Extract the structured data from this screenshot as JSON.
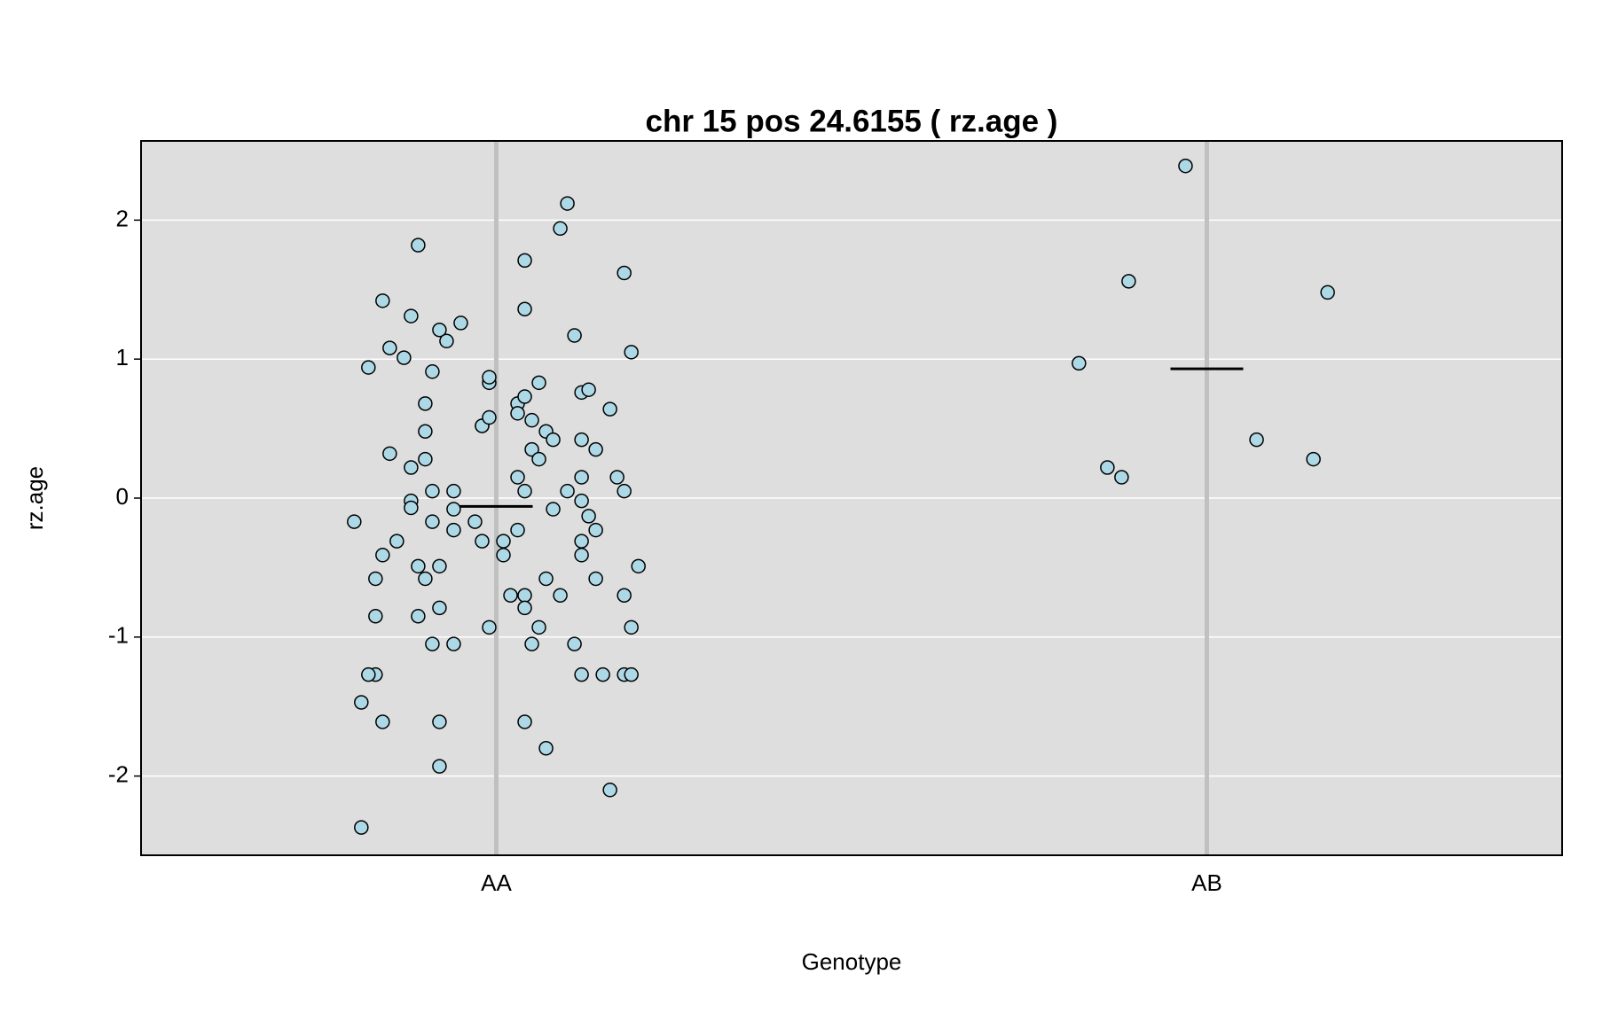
{
  "chart_data": {
    "type": "scatter",
    "title": "chr 15 pos 24.6155 ( rz.age )",
    "xlabel": "Genotype",
    "ylabel": "rz.age",
    "xlim": [
      0.5,
      2.5
    ],
    "xticks": [
      {
        "value": 1,
        "label": "AA"
      },
      {
        "value": 2,
        "label": "AB"
      }
    ],
    "ylim": [
      -2.57,
      2.57
    ],
    "yticks": [
      -2,
      -1,
      0,
      1,
      2
    ],
    "grid": true,
    "background": "#dedede",
    "grid_color": "#ffffff",
    "series": [
      {
        "color": "#add8e6",
        "x": [
          0.8,
          0.82,
          0.84,
          0.85,
          0.88,
          0.87,
          0.89,
          0.84,
          0.83,
          0.83,
          0.83,
          0.82,
          0.81,
          0.84,
          0.81,
          0.85,
          0.86,
          0.88,
          0.88,
          0.88,
          0.89,
          0.89,
          0.9,
          0.9,
          0.9,
          0.9,
          0.91,
          0.91,
          0.91,
          0.91,
          0.92,
          0.92,
          0.93,
          0.92,
          0.92,
          0.92,
          0.94,
          0.94,
          0.94,
          0.94,
          0.95,
          0.97,
          0.98,
          0.98,
          0.98,
          0.99,
          0.99,
          0.99,
          0.99,
          1.01,
          1.01,
          1.02,
          1.03,
          1.03,
          1.03,
          1.03,
          1.04,
          1.04,
          1.04,
          1.04,
          1.04,
          1.04,
          1.04,
          1.05,
          1.05,
          1.05,
          1.06,
          1.06,
          1.06,
          1.07,
          1.07,
          1.07,
          1.08,
          1.08,
          1.09,
          1.09,
          1.1,
          1.1,
          1.11,
          1.11,
          1.12,
          1.12,
          1.12,
          1.12,
          1.12,
          1.12,
          1.12,
          1.13,
          1.13,
          1.14,
          1.14,
          1.14,
          1.15,
          1.16,
          1.16,
          1.17,
          1.18,
          1.18,
          1.18,
          1.18,
          1.19,
          1.19,
          1.19,
          1.2
        ],
        "values": [
          -0.17,
          0.94,
          1.42,
          1.08,
          1.31,
          1.01,
          1.82,
          -0.41,
          -0.58,
          -0.85,
          -1.27,
          -1.27,
          -1.47,
          -1.61,
          -2.37,
          0.32,
          -0.31,
          0.22,
          -0.02,
          -0.07,
          -0.85,
          -0.49,
          0.68,
          0.48,
          0.28,
          -0.58,
          -1.05,
          0.05,
          0.91,
          -0.17,
          -0.79,
          1.21,
          1.13,
          -0.49,
          -1.61,
          -1.93,
          -0.23,
          -0.08,
          -1.05,
          0.05,
          1.26,
          -0.17,
          -0.31,
          0.52,
          0.52,
          0.83,
          0.87,
          0.58,
          -0.93,
          -0.41,
          -0.31,
          -0.7,
          0.15,
          -0.23,
          0.68,
          0.61,
          -0.7,
          1.36,
          -0.79,
          0.73,
          0.05,
          1.71,
          -1.61,
          0.56,
          0.35,
          -1.05,
          -0.93,
          0.83,
          0.28,
          0.48,
          -0.58,
          -1.8,
          0.42,
          -0.08,
          -0.7,
          1.94,
          2.12,
          0.05,
          -1.05,
          1.17,
          0.15,
          -1.27,
          -0.41,
          -0.31,
          0.42,
          -0.02,
          0.76,
          0.78,
          -0.13,
          -0.23,
          -0.58,
          0.35,
          -1.27,
          -2.1,
          0.64,
          0.15,
          1.62,
          0.05,
          -0.7,
          -1.27,
          -1.27,
          -0.93,
          1.05,
          -0.49
        ]
      },
      {
        "color": "#add8e6",
        "x": [
          1.82,
          1.86,
          1.88,
          1.89,
          1.97,
          2.07,
          2.15,
          2.17
        ],
        "values": [
          0.97,
          0.22,
          0.15,
          1.56,
          2.39,
          0.42,
          0.28,
          1.48
        ]
      }
    ],
    "means": {
      "color": "#000000",
      "x": [
        1,
        2
      ],
      "values": [
        -0.06,
        0.93
      ]
    }
  }
}
